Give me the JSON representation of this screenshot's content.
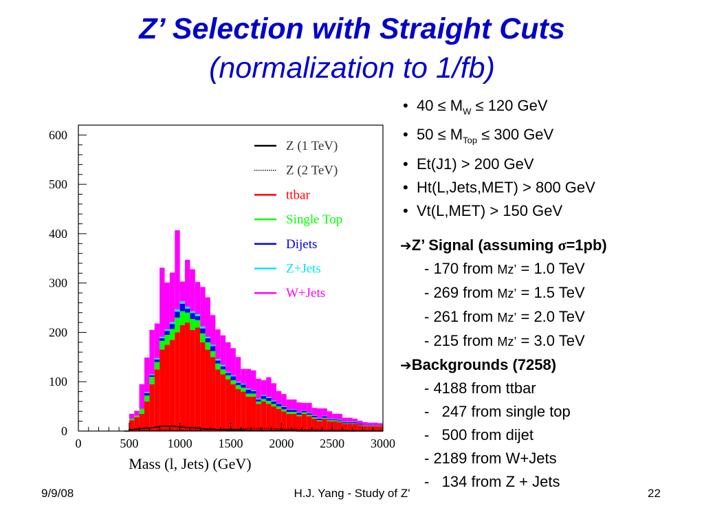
{
  "slide": {
    "title_line1": "Z’ Selection with Straight Cuts",
    "title_line2": "(normalization to 1/fb)"
  },
  "cuts": [
    {
      "pre": "40 ≤ M",
      "sub": "W",
      "post": " ≤ 120 GeV"
    },
    {
      "pre": "50 ≤ M",
      "sub": "Top",
      "post": " ≤ 300 GeV"
    },
    {
      "pre": "Et(J1) > 200 GeV",
      "sub": "",
      "post": ""
    },
    {
      "pre": "Ht(L,Jets,MET) > 800 GeV",
      "sub": "",
      "post": ""
    },
    {
      "pre": "Vt(L,MET) > 150 GeV",
      "sub": "",
      "post": ""
    }
  ],
  "signal": {
    "arrow": "➔",
    "heading_pre": "Z’ Signal (assuming ",
    "sigma": "σ",
    "heading_post": "=1pb)",
    "items": [
      {
        "pre": "- 170 from ",
        "mz": "Mz’",
        "post": " = 1.0 TeV"
      },
      {
        "pre": "- 269 from ",
        "mz": "Mz’",
        "post": " = 1.5 TeV"
      },
      {
        "pre": "- 261 from ",
        "mz": "Mz’",
        "post": " = 2.0 TeV"
      },
      {
        "pre": "- 215 from ",
        "mz": "Mz’",
        "post": " = 3.0 TeV"
      }
    ]
  },
  "backgrounds": {
    "arrow": "➔",
    "heading": "Backgrounds (7258)",
    "items": [
      "- 4188 from ttbar",
      "-   247 from single top",
      "-   500 from dijet",
      "- 2189 from W+Jets",
      "-   134 from Z + Jets"
    ]
  },
  "footer": {
    "date": "9/9/08",
    "center": "H.J. Yang - Study of Z'",
    "page": "22"
  },
  "chart_data": {
    "type": "bar",
    "stacked": true,
    "xlabel": "Mass (l, Jets) (GeV)",
    "ylabel": "",
    "xlim": [
      0,
      3000
    ],
    "ylim": [
      0,
      620
    ],
    "x_ticks": [
      "0",
      "500",
      "1000",
      "1500",
      "2000",
      "2500",
      "3000"
    ],
    "y_ticks": [
      "0",
      "100",
      "200",
      "300",
      "400",
      "500",
      "600"
    ],
    "bin_width": 50,
    "bin_low_edges": [
      450,
      500,
      550,
      600,
      650,
      700,
      750,
      800,
      850,
      900,
      950,
      1000,
      1050,
      1100,
      1150,
      1200,
      1250,
      1300,
      1350,
      1400,
      1450,
      1500,
      1550,
      1600,
      1650,
      1700,
      1750,
      1800,
      1850,
      1900,
      1950,
      2000,
      2050,
      2100,
      2150,
      2200,
      2250,
      2300,
      2350,
      2400,
      2450,
      2500,
      2550,
      2600,
      2650,
      2700,
      2750,
      2800,
      2850,
      2900,
      2950
    ],
    "legend_position": "top-right",
    "series": [
      {
        "name": "ttbar",
        "color": "#ff0000",
        "values": [
          0,
          22,
          28,
          35,
          60,
          95,
          125,
          165,
          175,
          185,
          200,
          215,
          220,
          205,
          210,
          180,
          165,
          150,
          125,
          115,
          105,
          95,
          85,
          80,
          70,
          70,
          55,
          60,
          55,
          50,
          45,
          40,
          35,
          35,
          30,
          35,
          30,
          25,
          20,
          25,
          20,
          20,
          18,
          15,
          15,
          15,
          12,
          10,
          10,
          10,
          10
        ]
      },
      {
        "name": "Single Top",
        "color": "#00ff00",
        "values": [
          0,
          3,
          3,
          10,
          12,
          15,
          15,
          18,
          20,
          22,
          30,
          28,
          20,
          22,
          15,
          18,
          15,
          12,
          12,
          10,
          8,
          8,
          8,
          8,
          6,
          6,
          5,
          5,
          6,
          5,
          5,
          4,
          4,
          4,
          3,
          3,
          3,
          3,
          2,
          2,
          2,
          2,
          2,
          1,
          1,
          1,
          1,
          1,
          1,
          1,
          1
        ]
      },
      {
        "name": "Dijets",
        "color": "#0000ee",
        "values": [
          0,
          0,
          0,
          0,
          5,
          3,
          5,
          5,
          8,
          10,
          12,
          15,
          8,
          12,
          8,
          10,
          8,
          10,
          6,
          6,
          5,
          8,
          5,
          6,
          8,
          5,
          4,
          6,
          6,
          5,
          5,
          5,
          4,
          4,
          4,
          3,
          3,
          3,
          3,
          3,
          2,
          2,
          2,
          2,
          2,
          2,
          2,
          1,
          1,
          1,
          1
        ]
      },
      {
        "name": "Z+Jets",
        "color": "#00e5ff",
        "values": [
          0,
          0,
          0,
          0,
          2,
          2,
          3,
          3,
          3,
          4,
          5,
          5,
          4,
          4,
          4,
          4,
          3,
          3,
          3,
          3,
          2,
          2,
          2,
          2,
          2,
          2,
          2,
          2,
          2,
          2,
          1,
          1,
          1,
          1,
          1,
          1,
          1,
          1,
          1,
          1,
          1,
          1,
          1,
          1,
          1,
          1,
          0,
          0,
          0,
          0,
          0
        ]
      },
      {
        "name": "W+Jets",
        "color": "#ff00ff",
        "values": [
          0,
          10,
          10,
          50,
          70,
          90,
          70,
          140,
          95,
          100,
          160,
          40,
          95,
          85,
          65,
          80,
          80,
          60,
          60,
          60,
          60,
          55,
          50,
          30,
          40,
          40,
          40,
          30,
          40,
          35,
          25,
          25,
          20,
          20,
          20,
          15,
          20,
          15,
          20,
          15,
          15,
          10,
          12,
          8,
          8,
          6,
          6,
          6,
          5,
          5,
          4
        ]
      },
      {
        "name": "Z (1 TeV)",
        "color": "#000000",
        "style": "solid",
        "overlay": true,
        "values": [
          0,
          3,
          4,
          5,
          6,
          7,
          8,
          10,
          10,
          10,
          9,
          8,
          7,
          7,
          6,
          5,
          4,
          4,
          3,
          3,
          2,
          2,
          2,
          2,
          1,
          1,
          1,
          1,
          1,
          1,
          1,
          1,
          1,
          1,
          0,
          0,
          0,
          0,
          0,
          0,
          0,
          0,
          0,
          0,
          0,
          0,
          0,
          0,
          0,
          0,
          0
        ]
      },
      {
        "name": "Z (2 TeV)",
        "color": "#000000",
        "style": "dotted",
        "overlay": true,
        "values": [
          0,
          0,
          0,
          1,
          1,
          1,
          1,
          2,
          2,
          2,
          2,
          2,
          2,
          2,
          2,
          3,
          3,
          3,
          3,
          4,
          4,
          4,
          4,
          5,
          5,
          5,
          5,
          5,
          5,
          5,
          4,
          4,
          4,
          4,
          3,
          3,
          3,
          3,
          2,
          2,
          2,
          2,
          2,
          2,
          1,
          1,
          1,
          1,
          1,
          1,
          1
        ]
      }
    ],
    "legend_order": [
      "Z (1 TeV)",
      "Z (2 TeV)",
      "ttbar",
      "Single Top",
      "Dijets",
      "Z+Jets",
      "W+Jets"
    ]
  }
}
